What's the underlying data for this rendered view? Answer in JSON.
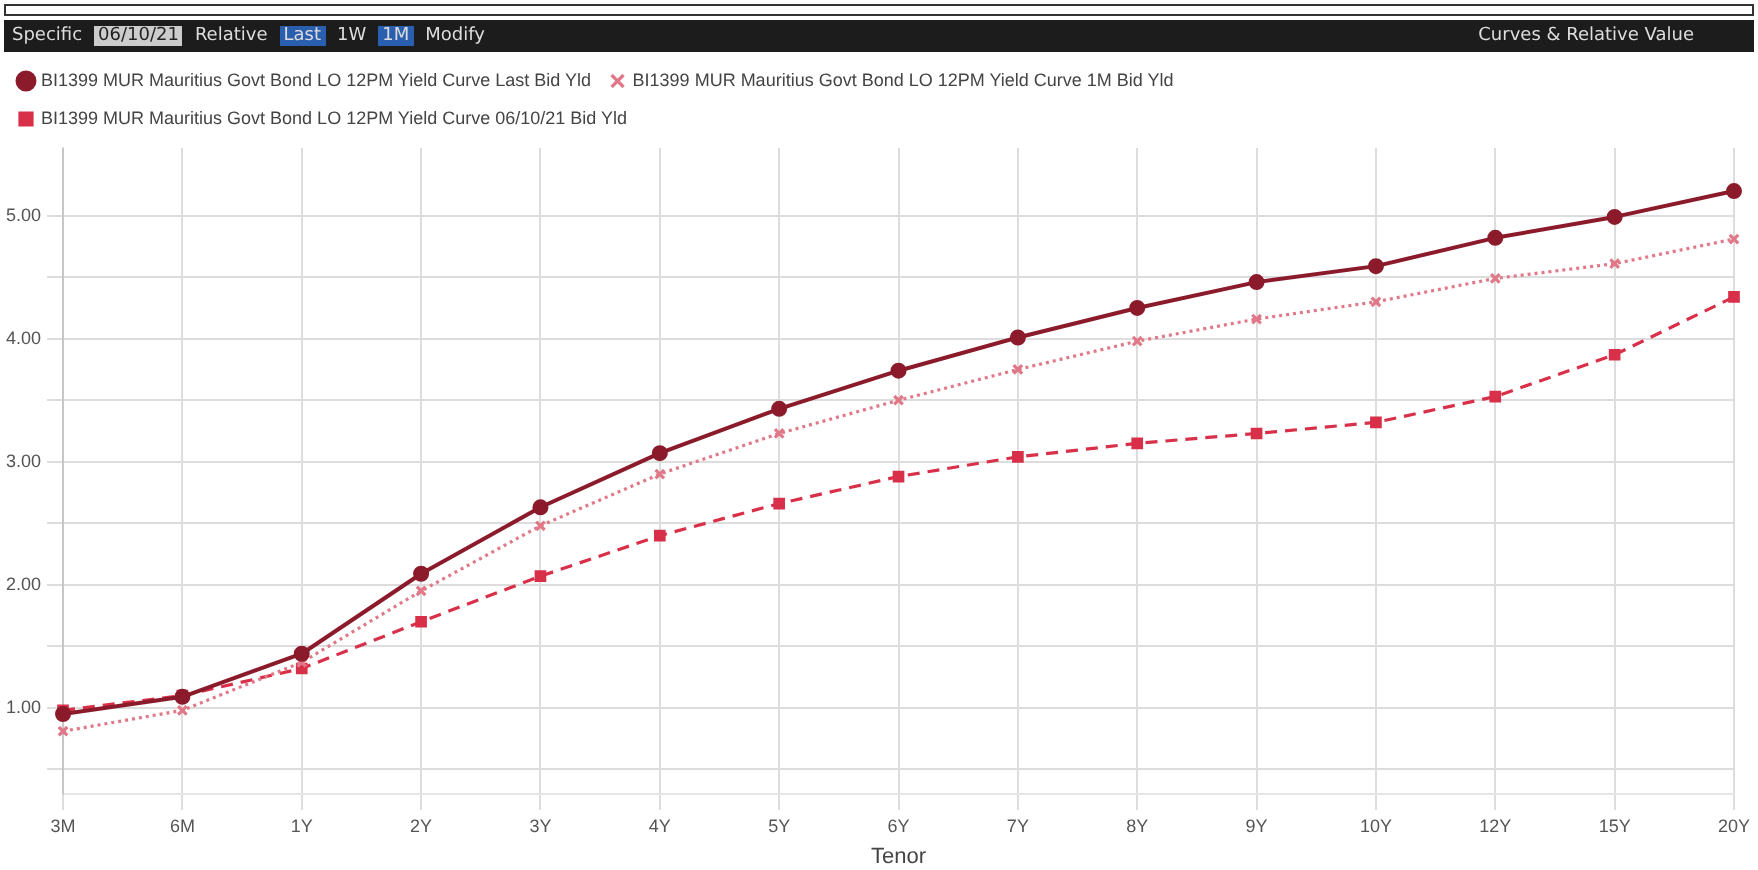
{
  "chart_data": {
    "type": "line",
    "xlabel": "Tenor",
    "annotations": [
      "Specific",
      "06/10/21",
      "Relative",
      "Last",
      "1W",
      "1M",
      "Modify",
      "Curves & Relative Value"
    ],
    "categories": [
      "3M",
      "6M",
      "1Y",
      "2Y",
      "3Y",
      "4Y",
      "5Y",
      "6Y",
      "7Y",
      "8Y",
      "9Y",
      "10Y",
      "12Y",
      "15Y",
      "20Y"
    ],
    "series": [
      {
        "name": "BI1399 MUR Mauritius Govt Bond LO 12PM Yield Curve Last Bid Yld",
        "color": "#8b1a2b",
        "marker": "circle",
        "line_style": "solid",
        "values": [
          0.95,
          1.09,
          1.44,
          2.09,
          2.63,
          3.07,
          3.43,
          3.74,
          4.01,
          4.25,
          4.46,
          4.59,
          4.82,
          4.99,
          5.2
        ]
      },
      {
        "name": "BI1399 MUR Mauritius Govt Bond LO 12PM Yield Curve 1M Bid Yld",
        "color": "#e07888",
        "marker": "cross",
        "line_style": "dotted",
        "values": [
          0.81,
          0.98,
          1.37,
          1.95,
          2.48,
          2.9,
          3.23,
          3.5,
          3.75,
          3.98,
          4.16,
          4.3,
          4.49,
          4.61,
          4.81
        ]
      },
      {
        "name": "BI1399 MUR Mauritius Govt Bond LO 12PM Yield Curve 06/10/21 Bid Yld",
        "color": "#d9304a",
        "marker": "square",
        "line_style": "dashed",
        "values": [
          0.98,
          1.1,
          1.32,
          1.7,
          2.07,
          2.4,
          2.66,
          2.88,
          3.04,
          3.15,
          3.23,
          3.32,
          3.53,
          3.87,
          4.34
        ]
      }
    ],
    "ylim": [
      0.3,
      5.55
    ],
    "yticks": [
      {
        "value": 0.5,
        "label": null
      },
      {
        "value": 1,
        "label": "1.00"
      },
      {
        "value": 1.5,
        "label": null
      },
      {
        "value": 2,
        "label": "2.00"
      },
      {
        "value": 2.5,
        "label": null
      },
      {
        "value": 3,
        "label": "3.00"
      },
      {
        "value": 3.5,
        "label": null
      },
      {
        "value": 4,
        "label": "4.00"
      },
      {
        "value": 4.5,
        "label": null
      },
      {
        "value": 5,
        "label": "5.00"
      }
    ],
    "grid": true,
    "legend": "top left"
  }
}
